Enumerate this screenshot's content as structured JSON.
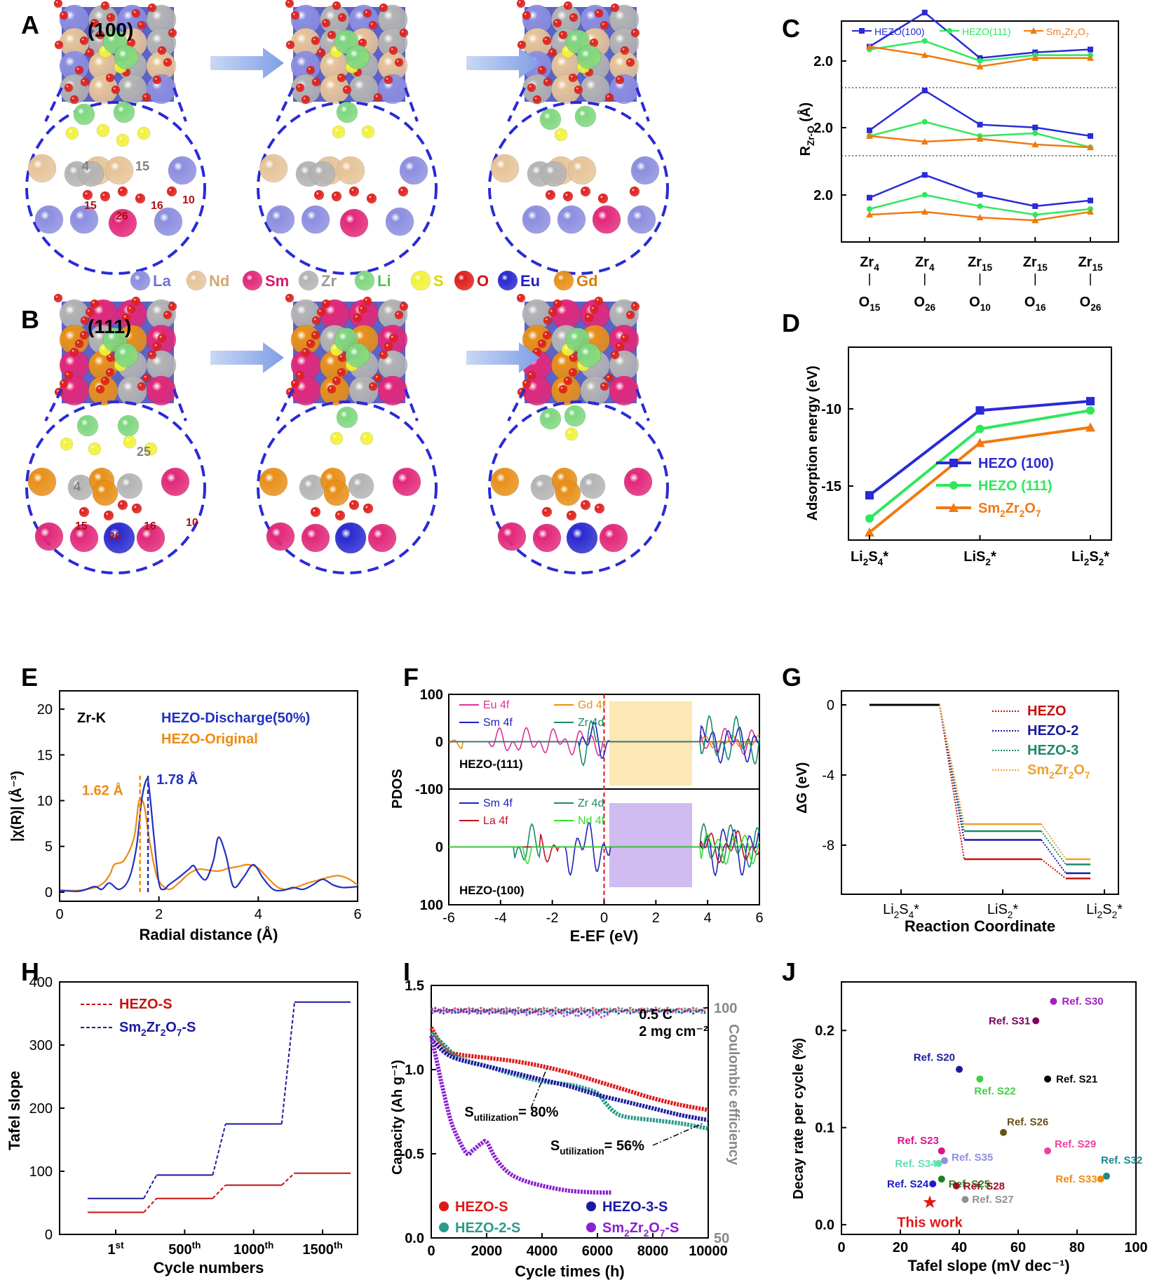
{
  "panels": {
    "A": {
      "label": "A",
      "facet": "(100)",
      "site_numbers": [
        "4",
        "15",
        "15",
        "26",
        "16",
        "10"
      ]
    },
    "B": {
      "label": "B",
      "facet": "(111)",
      "site_numbers": [
        "4",
        "25",
        "15",
        "26",
        "16",
        "10"
      ]
    },
    "C": {
      "label": "C"
    },
    "D": {
      "label": "D"
    },
    "E": {
      "label": "E"
    },
    "F": {
      "label": "F"
    },
    "G": {
      "label": "G"
    },
    "H": {
      "label": "H"
    },
    "I": {
      "label": "I"
    },
    "J": {
      "label": "J"
    }
  },
  "element_legend": [
    {
      "sym": "La",
      "color": "#8c8ee0",
      "text_color": "#6f72d6"
    },
    {
      "sym": "Nd",
      "color": "#e6c49a",
      "text_color": "#d4a870"
    },
    {
      "sym": "Sm",
      "color": "#e2287a",
      "text_color": "#d61a6a"
    },
    {
      "sym": "Zr",
      "color": "#b4b4b4",
      "text_color": "#9a9a9a"
    },
    {
      "sym": "Li",
      "color": "#7fd77f",
      "text_color": "#4fc24f"
    },
    {
      "sym": "S",
      "color": "#f2f23a",
      "text_color": "#d8d800"
    },
    {
      "sym": "O",
      "color": "#e0201c",
      "text_color": "#d01010"
    },
    {
      "sym": "Eu",
      "color": "#2a2ad0",
      "text_color": "#2020c0"
    },
    {
      "sym": "Gd",
      "color": "#e8901a",
      "text_color": "#d87d00"
    }
  ],
  "chart_data": [
    {
      "id": "C",
      "type": "line",
      "ylabel": "R_Zr-O (Å)",
      "categories": [
        [
          "Zr",
          "4",
          "O",
          "15"
        ],
        [
          "Zr",
          "4",
          "O",
          "26"
        ],
        [
          "Zr",
          "15",
          "O",
          "10"
        ],
        [
          "Zr",
          "15",
          "O",
          "16"
        ],
        [
          "Zr",
          "15",
          "O",
          "26"
        ]
      ],
      "stacked_offsets": [
        "2.0",
        "2.0",
        "2.0"
      ],
      "series": [
        {
          "name": "HEZO(100)",
          "color": "#2a2ad6",
          "marker": "square",
          "values": [
            [
              2.05,
              2.11,
              2.03,
              2.04,
              2.045
            ],
            [
              2.02,
              2.09,
              2.03,
              2.025,
              2.01
            ],
            [
              2.02,
              2.06,
              2.025,
              2.005,
              2.015
            ]
          ]
        },
        {
          "name": "HEZO(111)",
          "color": "#2ee85c",
          "marker": "circle",
          "values": [
            [
              2.045,
              2.06,
              2.025,
              2.035,
              2.035
            ],
            [
              2.01,
              2.035,
              2.01,
              2.015,
              1.99
            ],
            [
              2.0,
              2.025,
              2.005,
              1.99,
              2.0
            ]
          ]
        },
        {
          "name": "Sm2Zr2O7",
          "color": "#f07a10",
          "marker": "triangle",
          "values": [
            [
              2.05,
              2.035,
              2.015,
              2.03,
              2.03
            ],
            [
              2.01,
              2.0,
              2.005,
              1.995,
              1.99
            ],
            [
              1.99,
              1.995,
              1.985,
              1.98,
              1.995
            ]
          ]
        }
      ]
    },
    {
      "id": "D",
      "type": "line",
      "ylabel": "Adsorption energy (eV)",
      "categories": [
        [
          "Li",
          "2",
          "S",
          "4",
          "*"
        ],
        [
          "Li",
          "S",
          "2",
          "*"
        ],
        [
          "Li",
          "2",
          "S",
          "2",
          "*"
        ]
      ],
      "yticks": [
        "-10",
        "-15"
      ],
      "ylim": [
        -18.5,
        -6
      ],
      "series": [
        {
          "name": "HEZO (100)",
          "color": "#2a2ad6",
          "marker": "square",
          "values": [
            -15.6,
            -10.1,
            -9.5
          ]
        },
        {
          "name": "HEZO (111)",
          "color": "#2ee85c",
          "marker": "circle",
          "values": [
            -17.1,
            -11.3,
            -10.1
          ]
        },
        {
          "name": "Sm2Zr2O7",
          "color": "#f07a10",
          "marker": "triangle",
          "values": [
            -18.0,
            -12.2,
            -11.2
          ]
        }
      ]
    },
    {
      "id": "E",
      "type": "line",
      "xlabel": "Radial distance (Å)",
      "ylabel": "|χ(R)| (Å⁻³)",
      "xlim": [
        0,
        6
      ],
      "ylim": [
        -1,
        22
      ],
      "xticks": [
        "0",
        "2",
        "4",
        "6"
      ],
      "yticks": [
        "0",
        "5",
        "10",
        "15",
        "20"
      ],
      "edge_label": "Zr-K",
      "annotations": [
        "1.62 Å",
        "1.78 Å"
      ],
      "series": [
        {
          "name": "HEZO-Discharge(50%)",
          "color": "#2230c0",
          "x": [
            0,
            0.4,
            0.7,
            0.85,
            1.0,
            1.2,
            1.4,
            1.55,
            1.65,
            1.75,
            1.8,
            1.9,
            2.0,
            2.1,
            2.2,
            2.4,
            2.6,
            2.7,
            2.8,
            2.95,
            3.1,
            3.2,
            3.35,
            3.5,
            3.7,
            3.9,
            4.1,
            4.3,
            4.5,
            4.7,
            4.9,
            5.1,
            5.3,
            5.5,
            5.7,
            6.0
          ],
          "y": [
            0.2,
            0.1,
            0.6,
            0.3,
            1.0,
            0.3,
            1.5,
            5.0,
            10.0,
            12.3,
            11.5,
            6.0,
            1.0,
            0.3,
            0.8,
            1.6,
            2.5,
            2.9,
            2.0,
            1.4,
            3.5,
            6.0,
            4.0,
            0.6,
            1.6,
            3.0,
            1.5,
            0.3,
            0.2,
            0.5,
            0.3,
            0.8,
            1.4,
            0.8,
            0.5,
            0.6
          ]
        },
        {
          "name": "HEZO-Original",
          "color": "#f08a10",
          "x": [
            0,
            0.4,
            0.8,
            1.0,
            1.1,
            1.3,
            1.5,
            1.6,
            1.7,
            1.8,
            1.9,
            2.0,
            2.2,
            2.4,
            2.6,
            2.8,
            3.0,
            3.2,
            3.4,
            3.6,
            3.8,
            4.0,
            4.2,
            4.4,
            4.6,
            4.8,
            5.0,
            5.2,
            5.4,
            5.6,
            5.8,
            6.0
          ],
          "y": [
            0.2,
            0.2,
            0.7,
            1.8,
            3.0,
            3.5,
            6.0,
            10.0,
            9.5,
            6.0,
            3.0,
            1.2,
            0.3,
            1.0,
            2.0,
            2.5,
            2.4,
            2.3,
            2.6,
            2.8,
            3.0,
            2.6,
            1.5,
            0.5,
            0.3,
            0.6,
            1.0,
            1.3,
            1.6,
            1.8,
            1.5,
            0.8
          ]
        }
      ]
    },
    {
      "id": "F",
      "type": "line",
      "xlabel": "E-EF (eV)",
      "ylabel": "PDOS",
      "xlim": [
        -6,
        6
      ],
      "xticks": [
        "-6",
        "-4",
        "-2",
        "0",
        "2",
        "4",
        "6"
      ],
      "yticks_top": [
        "100",
        "0",
        "-100"
      ],
      "yticks_bottom": [
        "0",
        "100"
      ],
      "top_label": "HEZO-(111)",
      "bottom_label": "HEZO-(100)",
      "top_legend": [
        {
          "name": "Eu 4f",
          "color": "#e0309a"
        },
        {
          "name": "Gd 4f",
          "color": "#e8920a"
        },
        {
          "name": "Sm 4f",
          "color": "#2020c0"
        },
        {
          "name": "Zr 4d",
          "color": "#1a8a6a"
        }
      ],
      "bottom_legend": [
        {
          "name": "Sm 4f",
          "color": "#2020c0"
        },
        {
          "name": "Zr 4d",
          "color": "#1a8a6a"
        },
        {
          "name": "La 4f",
          "color": "#c01020"
        },
        {
          "name": "Nd 4f",
          "color": "#30e030"
        }
      ]
    },
    {
      "id": "G",
      "type": "line",
      "xlabel": "Reaction Coordinate",
      "ylabel": "ΔG (eV)",
      "categories": [
        [
          "Li",
          "2",
          "S",
          "4",
          "*"
        ],
        [
          "Li",
          "S",
          "2",
          "*"
        ],
        [
          "Li",
          "2",
          "S",
          "2",
          "*"
        ]
      ],
      "yticks": [
        "0",
        "-4",
        "-8"
      ],
      "ylim": [
        -10.8,
        0.8
      ],
      "series": [
        {
          "name": "HEZO",
          "color": "#c81010",
          "values": [
            0,
            -8.8,
            -9.9
          ]
        },
        {
          "name": "HEZO-2",
          "color": "#1a1aa0",
          "values": [
            0,
            -7.7,
            -9.6
          ]
        },
        {
          "name": "HEZO-3",
          "color": "#1a8a6a",
          "values": [
            0,
            -7.2,
            -9.1
          ]
        },
        {
          "name": "Sm2Zr2O7",
          "color": "#f0a030",
          "values": [
            0,
            -6.8,
            -8.8
          ]
        }
      ]
    },
    {
      "id": "H",
      "type": "line",
      "xlabel": "Cycle numbers",
      "ylabel": "Tafel slope",
      "categories": [
        [
          "1",
          "st"
        ],
        [
          "500",
          "th"
        ],
        [
          "1000",
          "th"
        ],
        [
          "1500",
          "th"
        ]
      ],
      "ylim": [
        0,
        400
      ],
      "yticks": [
        "0",
        "100",
        "200",
        "300",
        "400"
      ],
      "series": [
        {
          "name": "HEZO-S",
          "color": "#c81010",
          "values": [
            35,
            57,
            78,
            97
          ]
        },
        {
          "name": "Sm2Zr2O7-S",
          "color": "#1a1aa0",
          "values": [
            57,
            94,
            175,
            368
          ]
        }
      ]
    },
    {
      "id": "I",
      "type": "scatter",
      "xlabel": "Cycle times (h)",
      "ylabel": "Capacity (Ah g⁻¹)",
      "ylabel2": "Coulombic efficiency",
      "xlim": [
        0,
        10000
      ],
      "ylim": [
        0,
        1.5
      ],
      "xticks": [
        "0",
        "2000",
        "4000",
        "6000",
        "8000",
        "10000"
      ],
      "yticks": [
        "0.0",
        "0.5",
        "1.0",
        "1.5"
      ],
      "yticks2": [
        "100",
        "50"
      ],
      "conditions": [
        "0.5 C",
        "2 mg cm⁻²"
      ],
      "annotations": [
        [
          "S",
          "utilization",
          "= 80%"
        ],
        [
          "S",
          "utilization",
          "= 56%"
        ]
      ],
      "series": [
        {
          "name": "HEZO-S",
          "color": "#e01818",
          "x": [
            0,
            500,
            1000,
            2000,
            3000,
            4000,
            5000,
            6000,
            7000,
            8000,
            9000,
            10000
          ],
          "y": [
            1.25,
            1.12,
            1.09,
            1.07,
            1.05,
            1.02,
            0.98,
            0.93,
            0.88,
            0.83,
            0.79,
            0.76
          ]
        },
        {
          "name": "HEZO-2-S",
          "color": "#2a9a8a",
          "x": [
            0,
            500,
            1000,
            2000,
            3000,
            4000,
            5000,
            5500,
            6000,
            6300,
            6600,
            7000,
            8000,
            9000,
            10000
          ],
          "y": [
            1.22,
            1.14,
            1.07,
            1.02,
            0.97,
            0.93,
            0.91,
            0.89,
            0.86,
            0.8,
            0.75,
            0.72,
            0.7,
            0.68,
            0.65
          ]
        },
        {
          "name": "HEZO-3-S",
          "color": "#1a1aa0",
          "x": [
            0,
            500,
            1000,
            2000,
            3000,
            4000,
            5000,
            6000,
            7000,
            8000,
            9000,
            10000
          ],
          "y": [
            1.18,
            1.1,
            1.06,
            1.02,
            0.98,
            0.94,
            0.9,
            0.85,
            0.81,
            0.77,
            0.73,
            0.7
          ]
        },
        {
          "name": "Sm2Zr2O7-S",
          "color": "#8a20d0",
          "x": [
            0,
            200,
            400,
            700,
            1000,
            1300,
            1500,
            1800,
            2000,
            2300,
            2700,
            3200,
            4000,
            5000,
            6000,
            6500
          ],
          "y": [
            1.2,
            1.05,
            0.9,
            0.7,
            0.58,
            0.5,
            0.52,
            0.56,
            0.57,
            0.48,
            0.4,
            0.35,
            0.31,
            0.28,
            0.27,
            0.27
          ]
        }
      ]
    },
    {
      "id": "J",
      "type": "scatter",
      "xlabel": "Tafel slope (mV dec⁻¹)",
      "ylabel": "Decay rate per cycle (%)",
      "xlim": [
        0,
        100
      ],
      "ylim": [
        -0.01,
        0.25
      ],
      "xticks": [
        "0",
        "20",
        "40",
        "60",
        "80",
        "100"
      ],
      "yticks": [
        "0.0",
        "0.1",
        "0.2"
      ],
      "points": [
        {
          "name": "Ref. S30",
          "x": 72,
          "y": 0.23,
          "color": "#a020c0"
        },
        {
          "name": "Ref. S31",
          "x": 66,
          "y": 0.21,
          "color": "#800060"
        },
        {
          "name": "Ref. S20",
          "x": 40,
          "y": 0.16,
          "color": "#1a1aa0"
        },
        {
          "name": "Ref. S21",
          "x": 70,
          "y": 0.15,
          "color": "#000000"
        },
        {
          "name": "Ref. S22",
          "x": 47,
          "y": 0.15,
          "color": "#40d040"
        },
        {
          "name": "Ref. S26",
          "x": 55,
          "y": 0.095,
          "color": "#6a5010"
        },
        {
          "name": "Ref. S23",
          "x": 34,
          "y": 0.076,
          "color": "#e0108a"
        },
        {
          "name": "Ref. S29",
          "x": 70,
          "y": 0.076,
          "color": "#f040a0"
        },
        {
          "name": "Ref. S34",
          "x": 33,
          "y": 0.063,
          "color": "#60e0b0"
        },
        {
          "name": "Ref. S35",
          "x": 35,
          "y": 0.066,
          "color": "#9090e0"
        },
        {
          "name": "Ref. S32",
          "x": 90,
          "y": 0.05,
          "color": "#1a8a8a"
        },
        {
          "name": "Ref. S25",
          "x": 34,
          "y": 0.047,
          "color": "#208020"
        },
        {
          "name": "Ref. S33",
          "x": 88,
          "y": 0.047,
          "color": "#f08a10"
        },
        {
          "name": "Ref. S24",
          "x": 31,
          "y": 0.042,
          "color": "#1a1ad0"
        },
        {
          "name": "Ref. S28",
          "x": 39,
          "y": 0.04,
          "color": "#a01020"
        },
        {
          "name": "Ref. S27",
          "x": 42,
          "y": 0.026,
          "color": "#909090"
        }
      ],
      "highlight": {
        "name": "This work",
        "x": 30,
        "y": 0.023,
        "color": "#e01818"
      }
    }
  ]
}
